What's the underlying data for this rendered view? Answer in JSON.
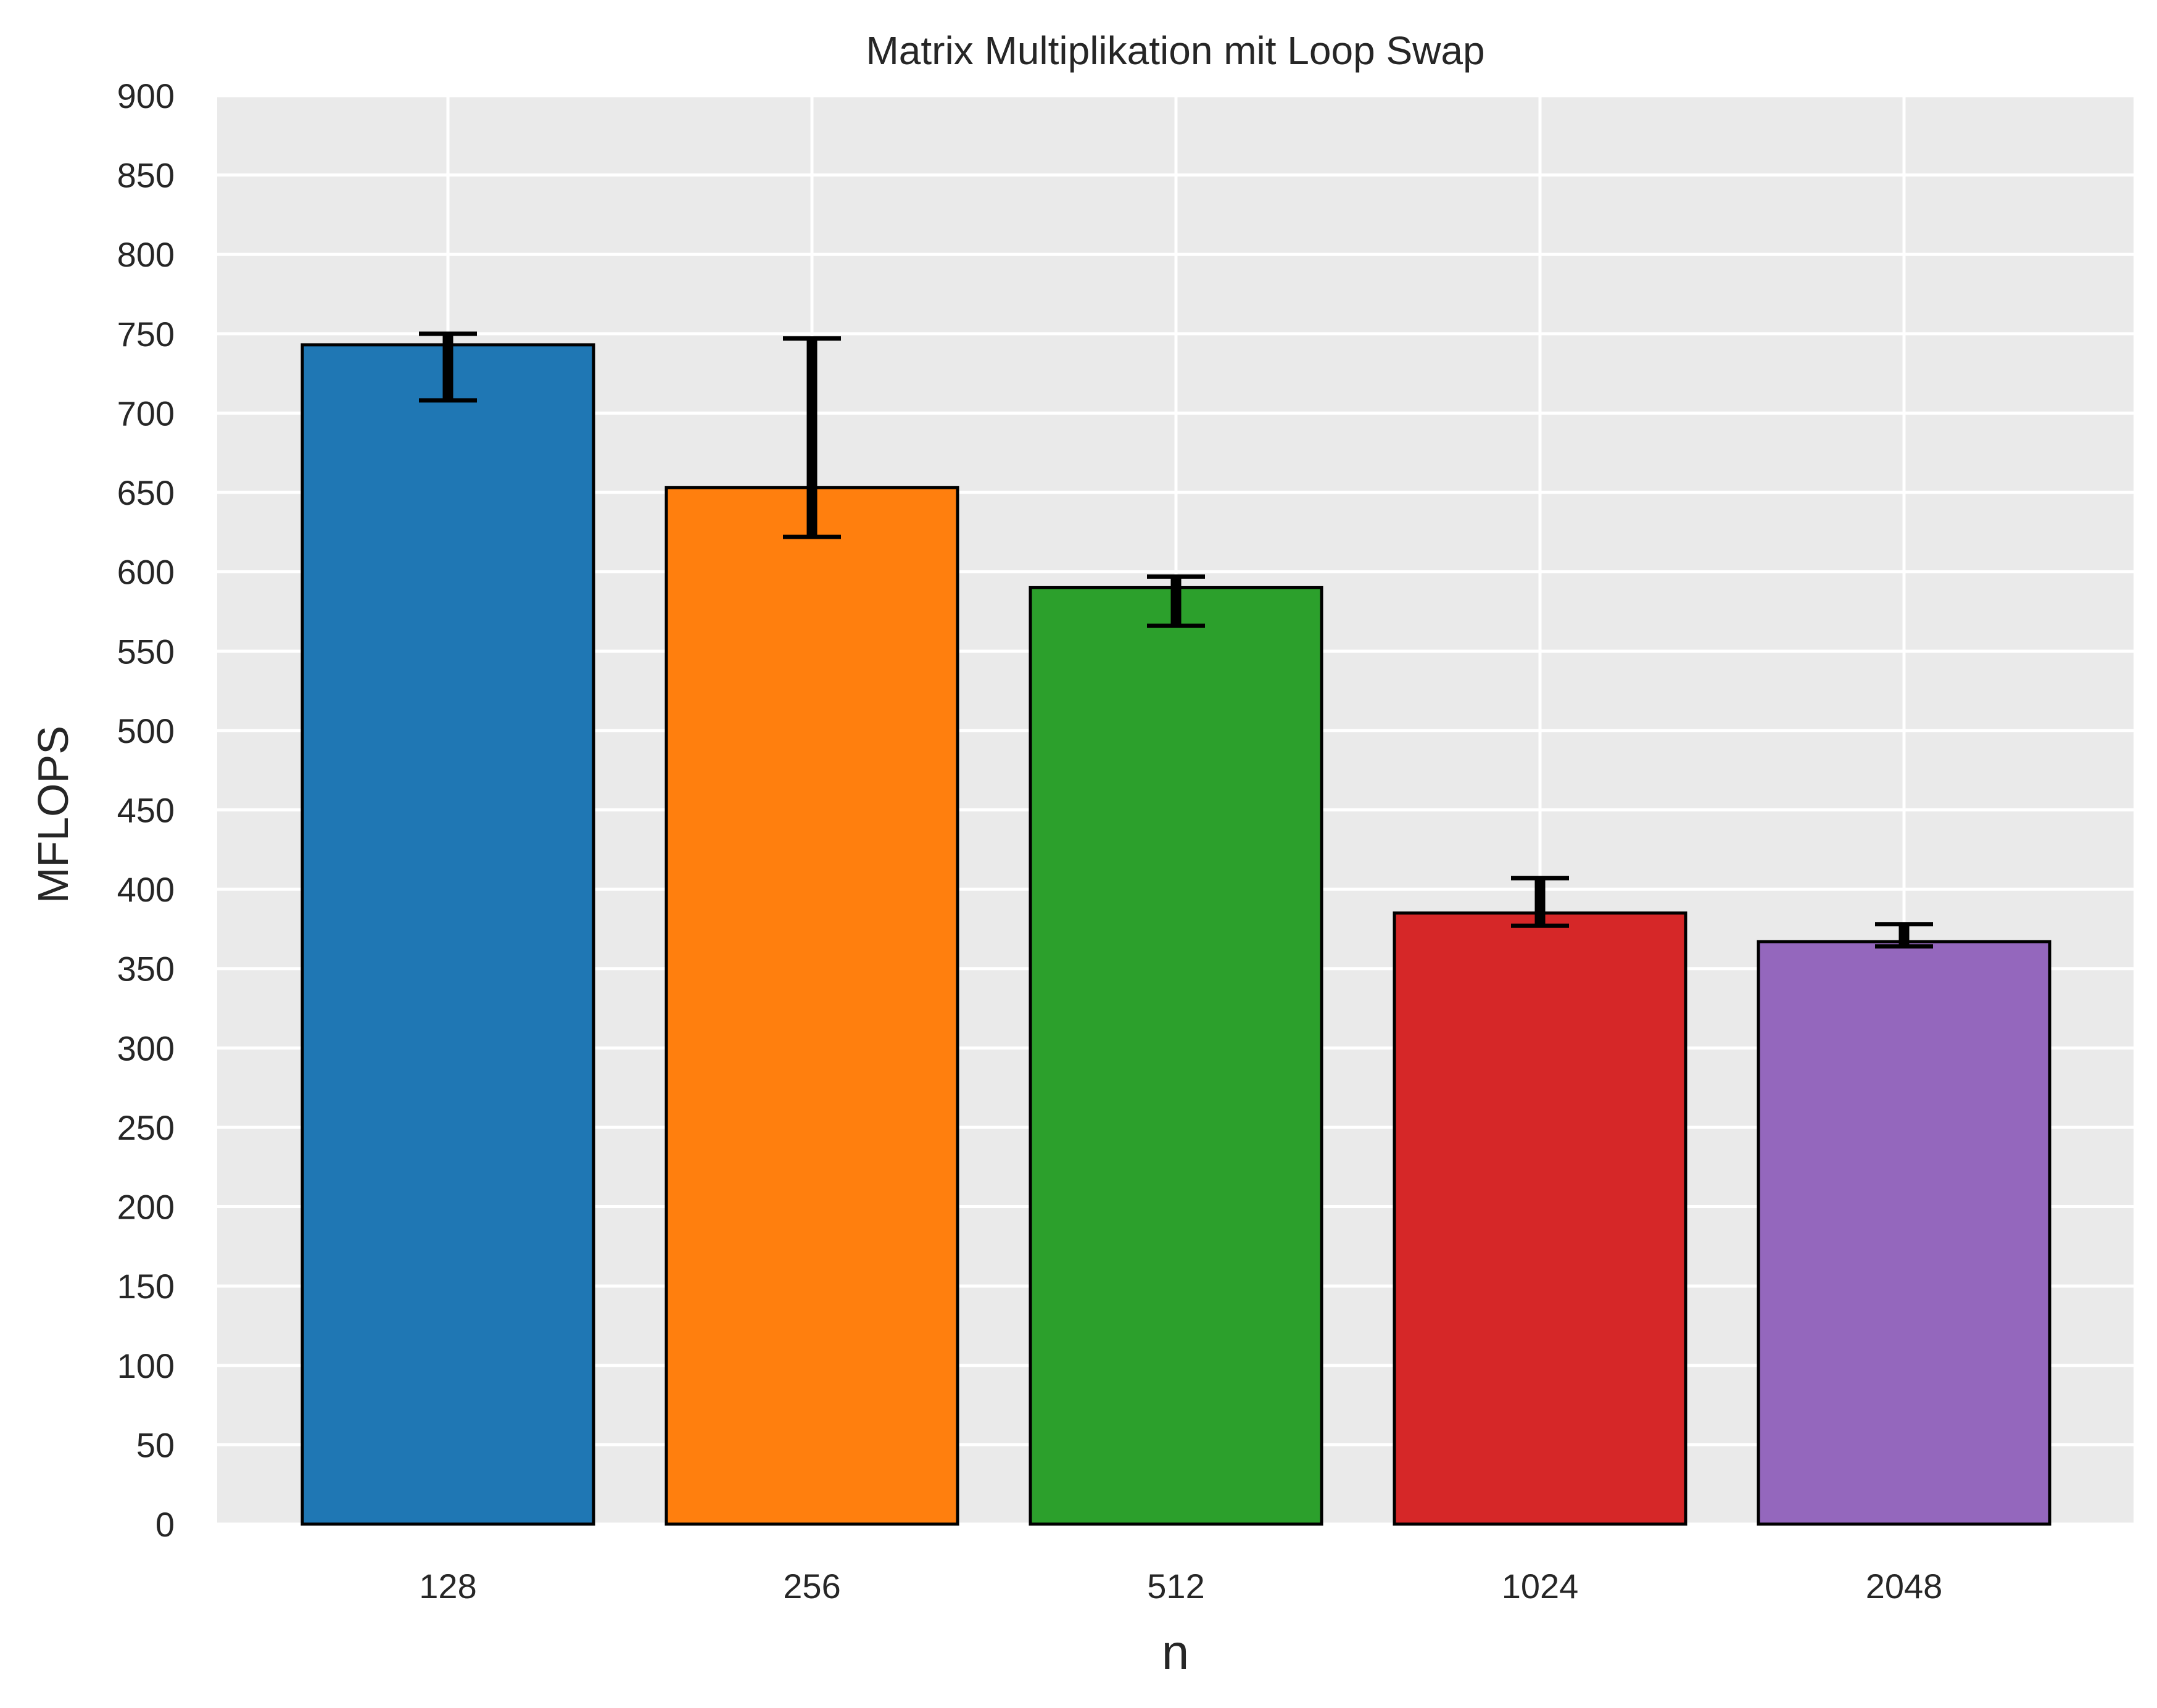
{
  "chart_data": {
    "type": "bar",
    "title": "Matrix Multiplikation mit Loop Swap",
    "xlabel": "n",
    "ylabel": "MFLOPS",
    "categories": [
      "128",
      "256",
      "512",
      "1024",
      "2048"
    ],
    "values": [
      743,
      653,
      590,
      385,
      367
    ],
    "error_low": [
      708,
      622,
      566,
      377,
      364
    ],
    "error_high": [
      750,
      747,
      597,
      407,
      378
    ],
    "colors": [
      "#1f77b4",
      "#ff7f0e",
      "#2ca02c",
      "#d62728",
      "#9467bd"
    ],
    "ylim": [
      0,
      900
    ],
    "yticks": [
      0,
      50,
      100,
      150,
      200,
      250,
      300,
      350,
      400,
      450,
      500,
      550,
      600,
      650,
      700,
      750,
      800,
      850,
      900
    ],
    "grid": true,
    "background": "#eaeaea",
    "edge_color": "#000000"
  }
}
